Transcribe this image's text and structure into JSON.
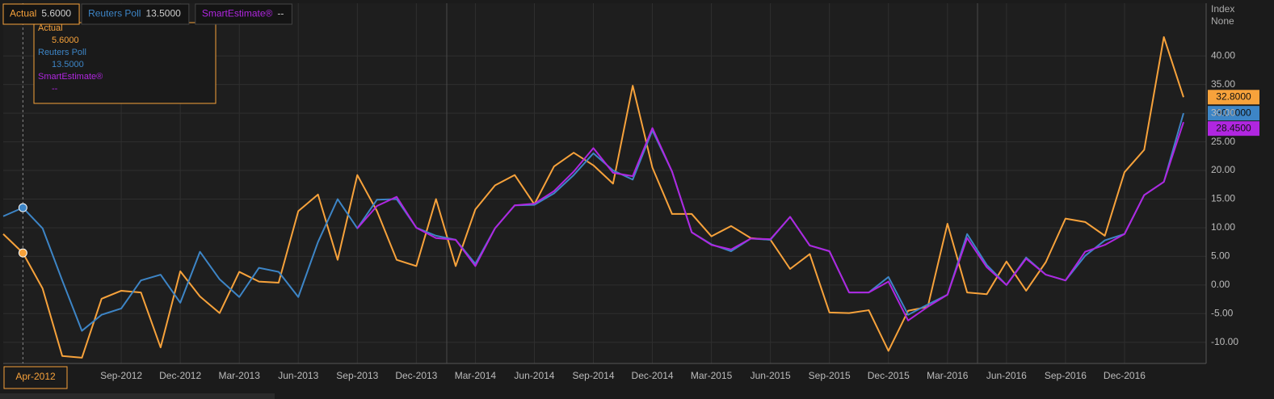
{
  "chart_data": {
    "type": "line",
    "x": [
      "Mar-2012",
      "Apr-2012",
      "May-2012",
      "Jun-2012",
      "Jul-2012",
      "Aug-2012",
      "Sep-2012",
      "Oct-2012",
      "Nov-2012",
      "Dec-2012",
      "Jan-2013",
      "Feb-2013",
      "Mar-2013",
      "Apr-2013",
      "May-2013",
      "Jun-2013",
      "Jul-2013",
      "Aug-2013",
      "Sep-2013",
      "Oct-2013",
      "Nov-2013",
      "Dec-2013",
      "Jan-2014",
      "Feb-2014",
      "Mar-2014",
      "Apr-2014",
      "May-2014",
      "Jun-2014",
      "Jul-2014",
      "Aug-2014",
      "Sep-2014",
      "Oct-2014",
      "Nov-2014",
      "Dec-2014",
      "Jan-2015",
      "Feb-2015",
      "Mar-2015",
      "Apr-2015",
      "May-2015",
      "Jun-2015",
      "Jul-2015",
      "Aug-2015",
      "Sep-2015",
      "Oct-2015",
      "Nov-2015",
      "Dec-2015",
      "Jan-2016",
      "Feb-2016",
      "Mar-2016",
      "Apr-2016",
      "May-2016",
      "Jun-2016",
      "Jul-2016",
      "Aug-2016",
      "Sep-2016",
      "Oct-2016",
      "Nov-2016",
      "Dec-2016",
      "Jan-2017",
      "Feb-2017",
      "Mar-2017"
    ],
    "xticks": [
      "Sep-2012",
      "Dec-2012",
      "Mar-2013",
      "Jun-2013",
      "Sep-2013",
      "Dec-2013",
      "Mar-2014",
      "Jun-2014",
      "Sep-2014",
      "Dec-2014",
      "Mar-2015",
      "Jun-2015",
      "Sep-2015",
      "Dec-2015",
      "Mar-2016",
      "Jun-2016",
      "Sep-2016",
      "Dec-2016"
    ],
    "ylim": [
      -13.7,
      49.2
    ],
    "yticks": [
      {
        "value": -10,
        "label": "-10.00"
      },
      {
        "value": -5,
        "label": "-5.00"
      },
      {
        "value": 0,
        "label": "0.00"
      },
      {
        "value": 5,
        "label": "5.00"
      },
      {
        "value": 10,
        "label": "10.00"
      },
      {
        "value": 15,
        "label": "15.00"
      },
      {
        "value": 20,
        "label": "20.00"
      },
      {
        "value": 25,
        "label": "25.00"
      },
      {
        "value": 30,
        "label": "30.00"
      },
      {
        "value": 35,
        "label": "35.00"
      },
      {
        "value": 40,
        "label": "40.00"
      }
    ],
    "y_axis_title": "Index",
    "y_axis_subtitle": "None",
    "grid": true,
    "crosshair": {
      "x": "Apr-2012"
    },
    "series": [
      {
        "name": "Actual",
        "color": "#f7a23b",
        "crosshair_label": "5.6000",
        "last_label": "32.8000",
        "values": [
          8.9,
          5.6,
          -0.6,
          -12.4,
          -12.7,
          -2.4,
          -1.0,
          -1.3,
          -10.9,
          2.4,
          -2.0,
          -4.9,
          2.3,
          0.6,
          0.4,
          12.9,
          15.8,
          4.4,
          19.2,
          12.9,
          4.4,
          3.3,
          15.0,
          3.3,
          13.2,
          17.4,
          19.2,
          14.1,
          20.7,
          23.1,
          20.9,
          17.7,
          34.8,
          20.5,
          12.4,
          12.4,
          8.5,
          10.3,
          8.2,
          7.9,
          2.8,
          5.4,
          -4.8,
          -4.9,
          -4.4,
          -11.5,
          -4.5,
          -3.8,
          10.7,
          -1.3,
          -1.6,
          4.1,
          -1.0,
          4.0,
          11.6,
          11.0,
          8.6,
          19.7,
          23.6,
          43.3,
          32.8
        ]
      },
      {
        "name": "Reuters Poll",
        "color": "#3d85c6",
        "crosshair_label": "13.5000",
        "last_label": "30.0000",
        "values": [
          12.0,
          13.5,
          9.9,
          0.8,
          -8.0,
          -5.2,
          -4.1,
          0.8,
          1.8,
          -3.1,
          5.8,
          1.0,
          -2.1,
          3.0,
          2.3,
          -2.1,
          7.5,
          15.0,
          9.9,
          14.9,
          15.0,
          10.0,
          8.6,
          7.9,
          3.7,
          9.9,
          13.9,
          14.0,
          16.0,
          19.2,
          23.0,
          20.0,
          18.4,
          27.0,
          19.8,
          9.2,
          7.1,
          5.9,
          8.1,
          7.9,
          11.9,
          6.9,
          5.9,
          -1.3,
          -1.3,
          1.4,
          -5.2,
          -3.4,
          -1.7,
          8.9,
          3.5,
          0.0,
          4.8,
          1.8,
          0.8,
          5.1,
          7.8,
          8.9,
          15.7,
          18.0,
          30.0
        ]
      },
      {
        "name": "SmartEstimate®",
        "color": "#b026e0",
        "crosshair_label": "--",
        "last_label": "28.4500",
        "values": [
          null,
          null,
          null,
          null,
          null,
          null,
          null,
          null,
          null,
          null,
          null,
          null,
          null,
          null,
          null,
          null,
          null,
          null,
          9.9,
          13.8,
          15.4,
          10,
          8.2,
          7.9,
          3.3,
          9.9,
          13.9,
          14.2,
          16.4,
          19.8,
          23.9,
          19.6,
          19.0,
          27.4,
          19.8,
          9.2,
          7.0,
          6.2,
          8.1,
          8.0,
          11.9,
          6.9,
          5.9,
          -1.3,
          -1.3,
          0.6,
          -6.2,
          -3.8,
          -1.7,
          8.2,
          3.1,
          0.0,
          4.6,
          1.8,
          0.8,
          5.8,
          7.0,
          8.9,
          15.7,
          18,
          28.45
        ]
      }
    ]
  }
}
